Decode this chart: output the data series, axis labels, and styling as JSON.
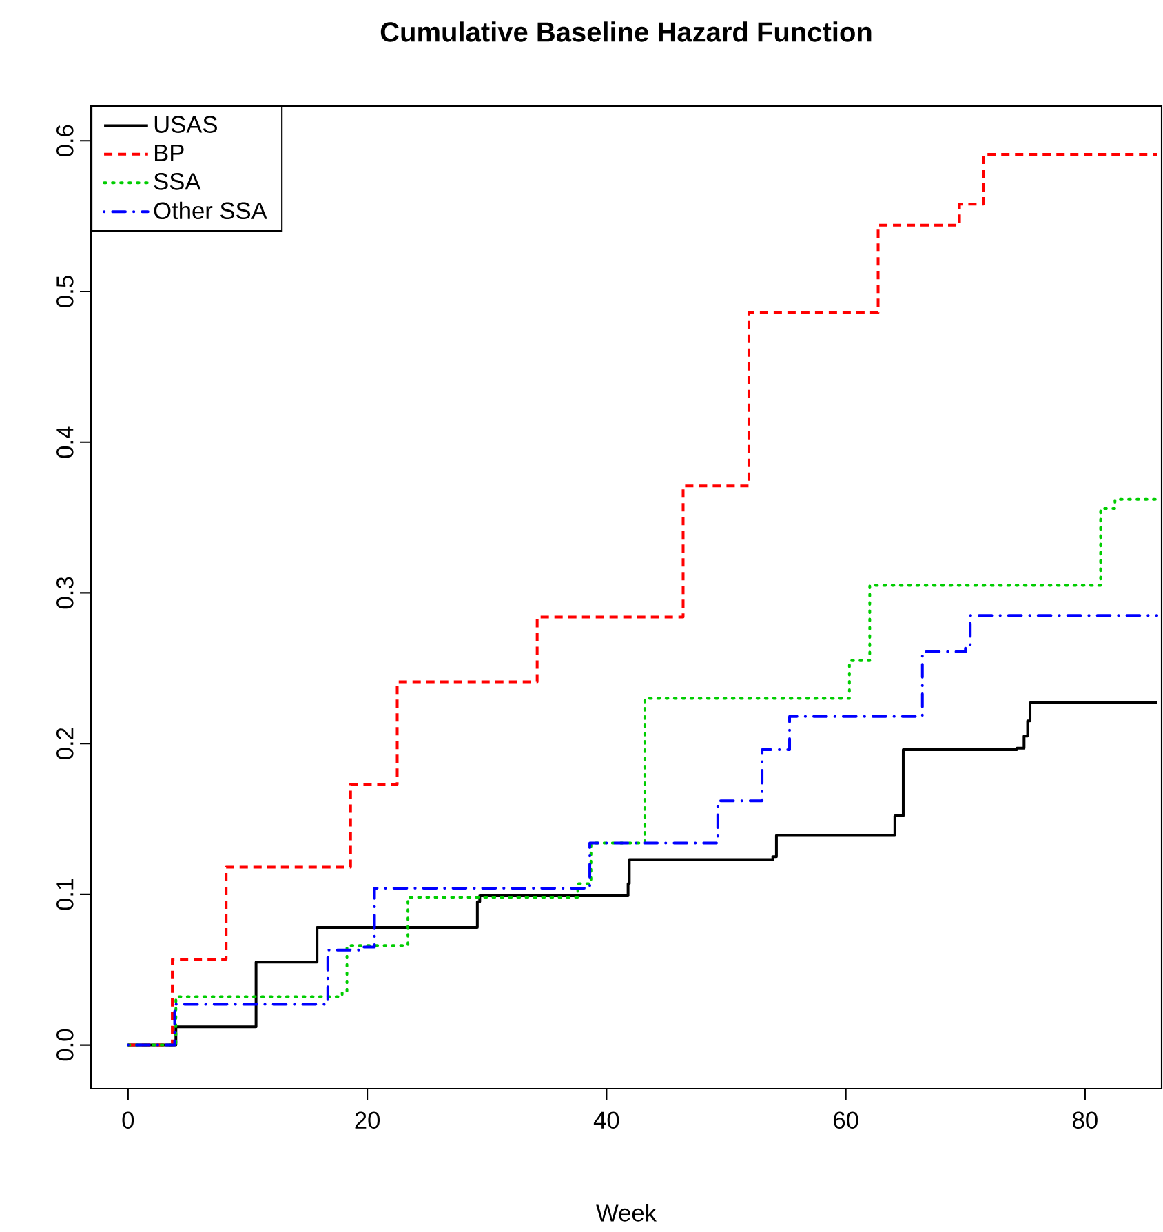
{
  "chart_data": {
    "type": "step",
    "title": "Cumulative Baseline Hazard Function",
    "xlabel": "Week",
    "xlim": [
      -3.1,
      86.4
    ],
    "ylim": [
      -0.029,
      0.623
    ],
    "xticks": [
      0,
      20,
      40,
      60,
      80
    ],
    "yticks": [
      {
        "value": 0,
        "label": "0.0"
      },
      {
        "value": 0.1,
        "label": "0.1"
      },
      {
        "value": 0.2,
        "label": "0.2"
      },
      {
        "value": 0.3,
        "label": "0.3"
      },
      {
        "value": 0.4,
        "label": "0.4"
      },
      {
        "value": 0.5,
        "label": "0.5"
      },
      {
        "value": 0.6,
        "label": "0.6"
      }
    ],
    "grid": false,
    "legend": "top left",
    "series": [
      {
        "name": "USAS",
        "color": "#000000",
        "line_style": "solid",
        "x": [
          0,
          4.0,
          10.7,
          15.8,
          29.2,
          29.4,
          41.8,
          41.9,
          53.9,
          54.2,
          64.1,
          64.8,
          74.3,
          74.9,
          75.2,
          75.4,
          86
        ],
        "values": [
          0,
          0.012,
          0.055,
          0.078,
          0.095,
          0.099,
          0.107,
          0.123,
          0.125,
          0.139,
          0.152,
          0.196,
          0.197,
          0.205,
          0.215,
          0.227,
          0.227
        ]
      },
      {
        "name": "BP",
        "color": "#ff0000",
        "line_style": "dashed",
        "x": [
          0,
          3.7,
          8.2,
          18.6,
          22.5,
          34.2,
          46.4,
          51.9,
          62.7,
          69.5,
          71.5,
          86
        ],
        "values": [
          0,
          0.057,
          0.118,
          0.173,
          0.241,
          0.284,
          0.371,
          0.486,
          0.544,
          0.558,
          0.591,
          0.591
        ]
      },
      {
        "name": "SSA",
        "color": "#00cd00",
        "line_style": "dotted",
        "x": [
          0,
          4.0,
          17.9,
          18.3,
          23.4,
          37.6,
          38.7,
          43.2,
          60.3,
          62.0,
          81.3,
          82.5,
          86
        ],
        "values": [
          0,
          0.032,
          0.035,
          0.066,
          0.098,
          0.107,
          0.134,
          0.23,
          0.255,
          0.305,
          0.356,
          0.362,
          0.364
        ]
      },
      {
        "name": "Other SSA",
        "color": "#0000ff",
        "line_style": "dashdot",
        "x": [
          0,
          3.9,
          16.7,
          19.6,
          20.6,
          38.6,
          49.3,
          53.0,
          55.3,
          66.4,
          70.0,
          70.4,
          86
        ],
        "values": [
          0,
          0.027,
          0.063,
          0.065,
          0.104,
          0.134,
          0.162,
          0.196,
          0.218,
          0.261,
          0.265,
          0.285,
          0.285
        ]
      }
    ]
  }
}
